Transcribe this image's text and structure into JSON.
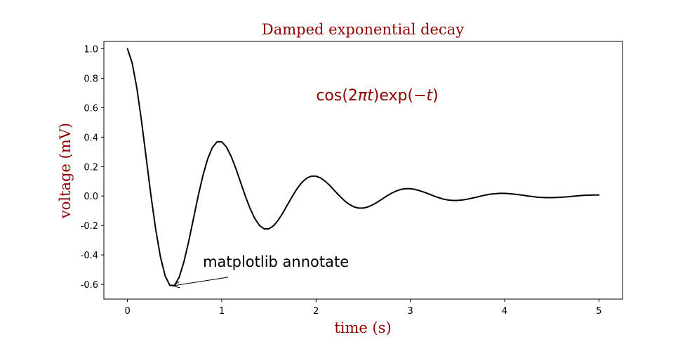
{
  "chart_data": {
    "type": "line",
    "title": "Damped exponential decay",
    "xlabel": "time (s)",
    "ylabel": "voltage (mV)",
    "xlim": [
      -0.25,
      5.25
    ],
    "ylim": [
      -0.7,
      1.05
    ],
    "x_ticks": [
      0,
      1,
      2,
      3,
      4,
      5
    ],
    "x_tick_labels": [
      "0",
      "1",
      "2",
      "3",
      "4",
      "5"
    ],
    "y_ticks": [
      -0.6,
      -0.4,
      -0.2,
      0.0,
      0.2,
      0.4,
      0.6,
      0.8,
      1.0
    ],
    "y_tick_labels": [
      "-0.6",
      "-0.4",
      "-0.2",
      "0.0",
      "0.2",
      "0.4",
      "0.6",
      "0.8",
      "1.0"
    ],
    "grid": false,
    "series": [
      {
        "formula": "cos(2πt)exp(−t)",
        "color": "#000000",
        "x": [
          0,
          0.05,
          0.1,
          0.15,
          0.2,
          0.25,
          0.3,
          0.35,
          0.4,
          0.45,
          0.5,
          0.55,
          0.6,
          0.65,
          0.7,
          0.75,
          0.8,
          0.85,
          0.9,
          0.95,
          1.0,
          1.05,
          1.1,
          1.15,
          1.2,
          1.25,
          1.3,
          1.35,
          1.4,
          1.45,
          1.5,
          1.55,
          1.6,
          1.65,
          1.7,
          1.75,
          1.8,
          1.85,
          1.9,
          1.95,
          2.0,
          2.05,
          2.1,
          2.15,
          2.2,
          2.25,
          2.3,
          2.35,
          2.4,
          2.45,
          2.5,
          2.55,
          2.6,
          2.65,
          2.7,
          2.75,
          2.8,
          2.85,
          2.9,
          2.95,
          3.0,
          3.05,
          3.1,
          3.15,
          3.2,
          3.25,
          3.3,
          3.35,
          3.4,
          3.45,
          3.5,
          3.55,
          3.6,
          3.65,
          3.7,
          3.75,
          3.8,
          3.85,
          3.9,
          3.95,
          4.0,
          4.05,
          4.1,
          4.15,
          4.2,
          4.25,
          4.3,
          4.35,
          4.4,
          4.45,
          4.5,
          4.55,
          4.6,
          4.65,
          4.7,
          4.75,
          4.8,
          4.85,
          4.9,
          4.95,
          5.0
        ],
        "y": [
          1.0,
          0.904,
          0.732,
          0.506,
          0.253,
          0.0,
          -0.228,
          -0.414,
          -0.543,
          -0.607,
          -0.607,
          -0.549,
          -0.444,
          -0.307,
          -0.153,
          0.0,
          0.138,
          0.251,
          0.329,
          0.368,
          0.368,
          0.333,
          0.269,
          0.186,
          0.093,
          0.0,
          -0.084,
          -0.152,
          -0.2,
          -0.223,
          -0.223,
          -0.202,
          -0.163,
          -0.113,
          -0.056,
          0.0,
          0.051,
          0.092,
          0.121,
          0.135,
          0.135,
          0.122,
          0.099,
          0.069,
          0.034,
          0.0,
          -0.031,
          -0.056,
          -0.073,
          -0.082,
          -0.082,
          -0.074,
          -0.06,
          -0.042,
          -0.021,
          0.0,
          0.019,
          0.034,
          0.045,
          0.05,
          0.05,
          0.045,
          0.036,
          0.025,
          0.013,
          0.0,
          -0.011,
          -0.021,
          -0.027,
          -0.03,
          -0.03,
          -0.027,
          -0.022,
          -0.015,
          -0.008,
          0.0,
          0.007,
          0.013,
          0.016,
          0.018,
          0.018,
          0.016,
          0.013,
          0.009,
          0.005,
          0.0,
          -0.004,
          -0.008,
          -0.01,
          -0.011,
          -0.011,
          -0.01,
          -0.008,
          -0.006,
          -0.003,
          0.0,
          0.003,
          0.005,
          0.006,
          0.007,
          0.007
        ]
      }
    ],
    "annotations": [
      {
        "text": "cos(2πt)exp(−t)",
        "at": [
          2.0,
          0.65
        ],
        "color": "#8b0000"
      },
      {
        "text": "matplotlib annotate",
        "xy": [
          0.48,
          -0.61
        ],
        "xytext": [
          0.8,
          -0.48
        ],
        "arrow": true,
        "color": "#000000"
      }
    ],
    "title_color": "#8b0000",
    "label_color": "#8b0000"
  }
}
